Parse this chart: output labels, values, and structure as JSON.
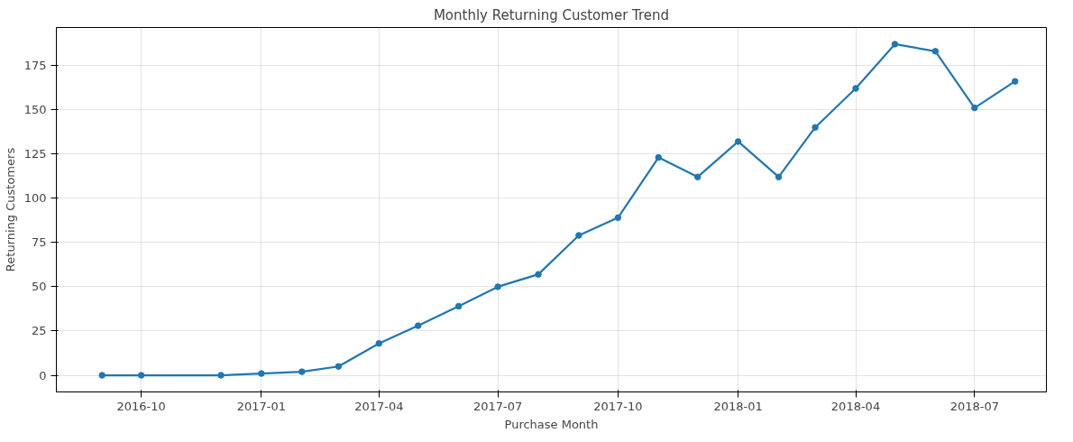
{
  "chart_data": {
    "type": "line",
    "title": "Monthly Returning Customer Trend",
    "xlabel": "Purchase Month",
    "ylabel": "Returning Customers",
    "x": [
      "2016-09",
      "2016-10",
      "2016-12",
      "2017-01",
      "2017-02",
      "2017-03",
      "2017-04",
      "2017-05",
      "2017-06",
      "2017-07",
      "2017-08",
      "2017-09",
      "2017-10",
      "2017-11",
      "2017-12",
      "2018-01",
      "2018-02",
      "2018-03",
      "2018-04",
      "2018-05",
      "2018-06",
      "2018-07",
      "2018-08"
    ],
    "series": [
      {
        "color": "#1f77b4",
        "values": [
          0,
          0,
          0,
          1,
          2,
          5,
          18,
          28,
          39,
          50,
          57,
          79,
          89,
          123,
          112,
          132,
          112,
          140,
          162,
          187,
          183,
          151,
          166
        ]
      }
    ],
    "xlim": [
      "2016-07-28",
      "2018-08-25"
    ],
    "xticks": [
      {
        "value": "2016-10",
        "label": "2016-10"
      },
      {
        "value": "2017-01",
        "label": "2017-01"
      },
      {
        "value": "2017-04",
        "label": "2017-04"
      },
      {
        "value": "2017-07",
        "label": "2017-07"
      },
      {
        "value": "2017-10",
        "label": "2017-10"
      },
      {
        "value": "2018-01",
        "label": "2018-01"
      },
      {
        "value": "2018-04",
        "label": "2018-04"
      },
      {
        "value": "2018-07",
        "label": "2018-07"
      }
    ],
    "ylim": [
      -9.4,
      196.4
    ],
    "yticks": [
      0,
      25,
      50,
      75,
      100,
      125,
      150,
      175
    ],
    "grid": true,
    "marker": "circle",
    "line_style": "solid"
  }
}
